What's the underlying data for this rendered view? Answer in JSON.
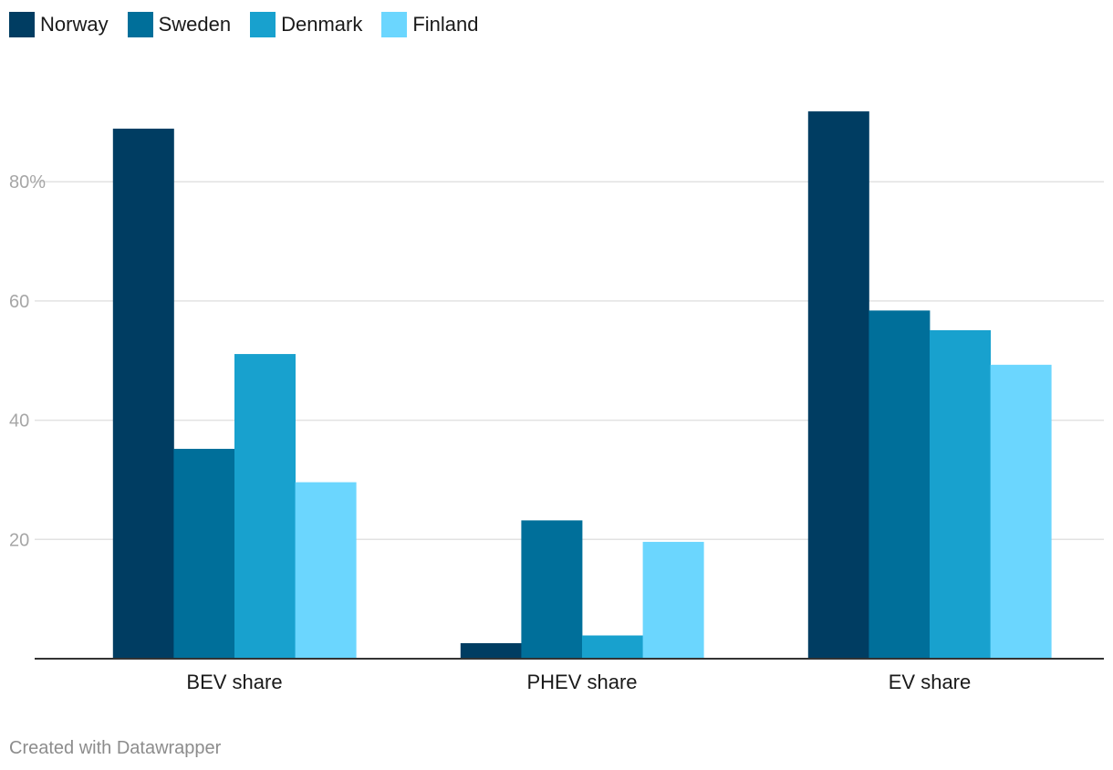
{
  "chart_data": {
    "type": "bar",
    "title": "",
    "xlabel": "",
    "ylabel": "",
    "categories": [
      "BEV share",
      "PHEV share",
      "EV share"
    ],
    "series": [
      {
        "name": "Norway",
        "color": "#003d62",
        "values": [
          88.9,
          2.6,
          91.8
        ]
      },
      {
        "name": "Sweden",
        "color": "#006f9a",
        "values": [
          35.2,
          23.2,
          58.4
        ]
      },
      {
        "name": "Denmark",
        "color": "#18a1ce",
        "values": [
          51.1,
          3.9,
          55.1
        ]
      },
      {
        "name": "Finland",
        "color": "#6bd6fe",
        "values": [
          29.6,
          19.6,
          49.3
        ]
      }
    ],
    "ylim": [
      0,
      92
    ],
    "yticks": [
      20,
      40,
      60,
      80
    ],
    "ytick_labels": [
      "20",
      "40",
      "60",
      "80%"
    ],
    "legend_position": "top-left",
    "grid": true
  },
  "footer": {
    "credit": "Created with Datawrapper"
  }
}
